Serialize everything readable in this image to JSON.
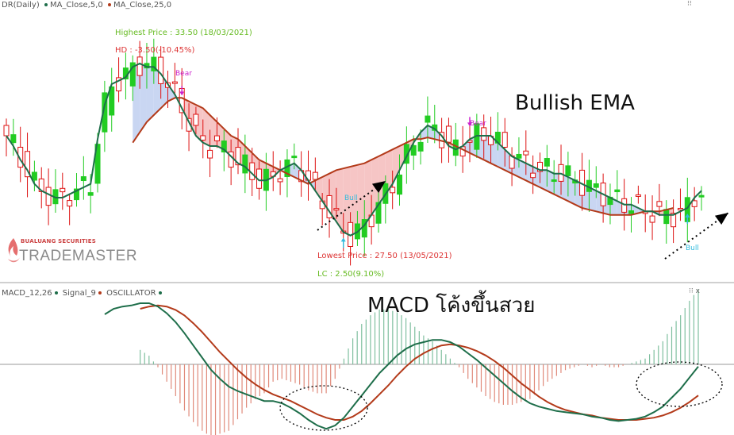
{
  "top_legend": {
    "main": "DR(Daily)",
    "ma5": "MA_Close,5,0",
    "ma25": "MA_Close,25,0",
    "ma5_color": "#1e6e4a",
    "ma25_color": "#b33a1a"
  },
  "macd_legend": {
    "macd": "MACD_12,26",
    "signal": "Signal_9",
    "osc": "OSCILLATOR",
    "macd_color": "#1e6e4a",
    "signal_color": "#b33a1a",
    "osc_color": "#1e6e4a"
  },
  "annotations": {
    "highest": "Highest Price : 33.50 (18/03/2021)",
    "hd": "HD : -3.50(-10.45%)",
    "lowest": "Lowest Price : 27.50 (13/05/2021)",
    "lc": "LC : 2.50(9.10%)",
    "bear": "Bear",
    "bull": "Bull",
    "title_main": "Bullish EMA",
    "title_macd": "MACD โค้งขึ้นสวย"
  },
  "logo": {
    "small": "BUALUANG SECURITIES",
    "big": "TRADEMASTER"
  },
  "window_buttons": {
    "main": "⁝⁝",
    "macd": "⁝⁝ x"
  },
  "colors": {
    "up": "#22cc22",
    "down": "#dd1111",
    "ma_fast": "#1e6e4a",
    "ma_slow": "#b33a1a",
    "fill_bull": "#c9d6f2",
    "fill_bear": "#f6c5c5",
    "bear_marker": "#cc22cc",
    "bull_marker": "#33bbdd"
  },
  "chart_data": [
    {
      "type": "candlestick",
      "name": "DR(Daily)",
      "series": [
        {
          "name": "MA_Close,5,0",
          "values": [
            30.9,
            30.6,
            30.2,
            29.9,
            29.5,
            29.3,
            29.2,
            29.1,
            29.1,
            29.2,
            29.3,
            29.4,
            29.5,
            30.8,
            31.8,
            32.4,
            32.5,
            32.6,
            32.9,
            33.0,
            32.9,
            32.9,
            32.7,
            32.4,
            32.1,
            31.7,
            31.3,
            30.9,
            30.7,
            30.6,
            30.6,
            30.5,
            30.3,
            30.1,
            30.0,
            29.8,
            29.6,
            29.6,
            29.7,
            29.9,
            30.0,
            30.1,
            29.9,
            29.6,
            29.3,
            29.0,
            28.7,
            28.4,
            28.1,
            28.0,
            28.1,
            28.3,
            28.6,
            28.9,
            29.2,
            29.5,
            29.9,
            30.3,
            30.7,
            31.0,
            31.2,
            31.1,
            30.9,
            30.6,
            30.5,
            30.6,
            30.8,
            30.9,
            30.9,
            30.9,
            30.7,
            30.5,
            30.3,
            30.2,
            30.1,
            30.0,
            29.9,
            29.9,
            29.8,
            29.8,
            29.7,
            29.6,
            29.5,
            29.4,
            29.3,
            29.2,
            29.1,
            29.0,
            28.9,
            28.9,
            28.8,
            28.7,
            28.7,
            28.6,
            28.6,
            28.6,
            28.7,
            28.8,
            29.1,
            29.3
          ]
        },
        {
          "name": "MA_Close,25,0",
          "values": [
            null,
            null,
            null,
            null,
            null,
            null,
            null,
            null,
            null,
            null,
            null,
            null,
            null,
            null,
            null,
            null,
            null,
            null,
            30.7,
            31.0,
            31.3,
            31.5,
            31.7,
            31.9,
            32.0,
            32.0,
            31.9,
            31.8,
            31.7,
            31.5,
            31.3,
            31.1,
            30.9,
            30.8,
            30.6,
            30.4,
            30.2,
            30.1,
            30.0,
            29.9,
            29.8,
            29.7,
            29.6,
            29.5,
            29.6,
            29.7,
            29.8,
            29.9,
            29.95,
            30.0,
            30.05,
            30.1,
            30.2,
            30.3,
            30.4,
            30.5,
            30.6,
            30.7,
            30.8,
            30.8,
            30.85,
            30.8,
            30.75,
            30.7,
            30.6,
            30.5,
            30.4,
            30.3,
            30.2,
            30.1,
            30.0,
            29.9,
            29.8,
            29.7,
            29.6,
            29.5,
            29.4,
            29.3,
            29.2,
            29.1,
            29.0,
            28.9,
            28.8,
            28.75,
            28.7,
            28.65,
            28.6,
            28.6,
            28.6,
            28.6,
            28.65,
            28.7,
            28.7,
            28.7,
            28.75,
            28.8
          ]
        }
      ],
      "highest": {
        "price": 33.5,
        "date": "18/03/2021"
      },
      "lowest": {
        "price": 27.5,
        "date": "13/05/2021"
      },
      "signals": [
        {
          "type": "Bear",
          "index": 25
        },
        {
          "type": "Bull",
          "index": 48
        },
        {
          "type": "Bear",
          "index": 66
        },
        {
          "type": "Bull",
          "index": 97
        }
      ],
      "title": "Bullish EMA"
    },
    {
      "type": "line",
      "name": "MACD_12,26",
      "series": [
        {
          "name": "MACD_12,26",
          "values": [
            0.45,
            0.5,
            0.52,
            0.53,
            0.55,
            0.55,
            0.52,
            0.46,
            0.38,
            0.28,
            0.17,
            0.06,
            -0.05,
            -0.13,
            -0.2,
            -0.24,
            -0.27,
            -0.3,
            -0.33,
            -0.33,
            -0.35,
            -0.39,
            -0.44,
            -0.5,
            -0.55,
            -0.58,
            -0.55,
            -0.48,
            -0.38,
            -0.28,
            -0.18,
            -0.08,
            0.0,
            0.08,
            0.14,
            0.18,
            0.2,
            0.22,
            0.22,
            0.2,
            0.16,
            0.1,
            0.04,
            -0.03,
            -0.1,
            -0.17,
            -0.24,
            -0.3,
            -0.35,
            -0.38,
            -0.4,
            -0.42,
            -0.43,
            -0.44,
            -0.45,
            -0.47,
            -0.48,
            -0.5,
            -0.51,
            -0.5,
            -0.49,
            -0.47,
            -0.43,
            -0.38,
            -0.3,
            -0.22,
            -0.12,
            -0.02
          ]
        },
        {
          "name": "Signal_9",
          "values": [
            null,
            null,
            null,
            null,
            0.5,
            0.52,
            0.53,
            0.52,
            0.49,
            0.44,
            0.37,
            0.29,
            0.2,
            0.11,
            0.03,
            -0.05,
            -0.12,
            -0.18,
            -0.23,
            -0.27,
            -0.3,
            -0.33,
            -0.37,
            -0.41,
            -0.45,
            -0.48,
            -0.5,
            -0.5,
            -0.47,
            -0.42,
            -0.35,
            -0.27,
            -0.19,
            -0.1,
            -0.02,
            0.05,
            0.1,
            0.14,
            0.17,
            0.18,
            0.17,
            0.15,
            0.12,
            0.08,
            0.03,
            -0.03,
            -0.1,
            -0.17,
            -0.23,
            -0.29,
            -0.34,
            -0.38,
            -0.41,
            -0.43,
            -0.45,
            -0.46,
            -0.48,
            -0.49,
            -0.5,
            -0.5,
            -0.5,
            -0.49,
            -0.48,
            -0.46,
            -0.43,
            -0.39,
            -0.34,
            -0.28
          ]
        }
      ],
      "title": "MACD โค้งขึ้นสวย"
    }
  ]
}
